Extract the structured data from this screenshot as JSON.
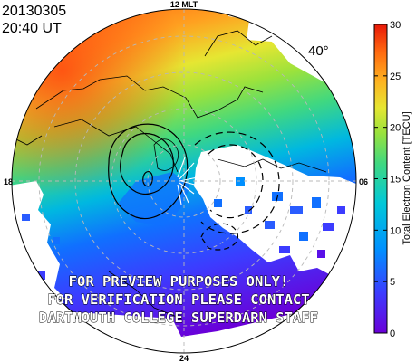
{
  "header": {
    "date": "20130305",
    "time": "20:40  UT",
    "latitude_label": "40°"
  },
  "mlt_labels": {
    "top": "12 MLT",
    "left": "18",
    "right": "06",
    "bottom": "24"
  },
  "colorbar": {
    "label": "Total Electron Content [TECU]",
    "min": 0,
    "max": 30,
    "ticks": [
      "0",
      "5",
      "10",
      "15",
      "20",
      "25",
      "30"
    ],
    "tick_values": [
      0,
      5,
      10,
      15,
      20,
      25,
      30
    ],
    "colors": [
      "#6a00d8",
      "#3c3cff",
      "#0090ff",
      "#00c8d8",
      "#40d880",
      "#9be23c",
      "#e6e632",
      "#ffb020",
      "#ff6a10",
      "#e81808"
    ]
  },
  "watermark": {
    "line1": "FOR PREVIEW PURPOSES ONLY!",
    "line2": "FOR VERIFICATION PLEASE CONTACT",
    "line3": "DARTMOUTH COLLEGE SUPERDARN STAFF"
  }
}
